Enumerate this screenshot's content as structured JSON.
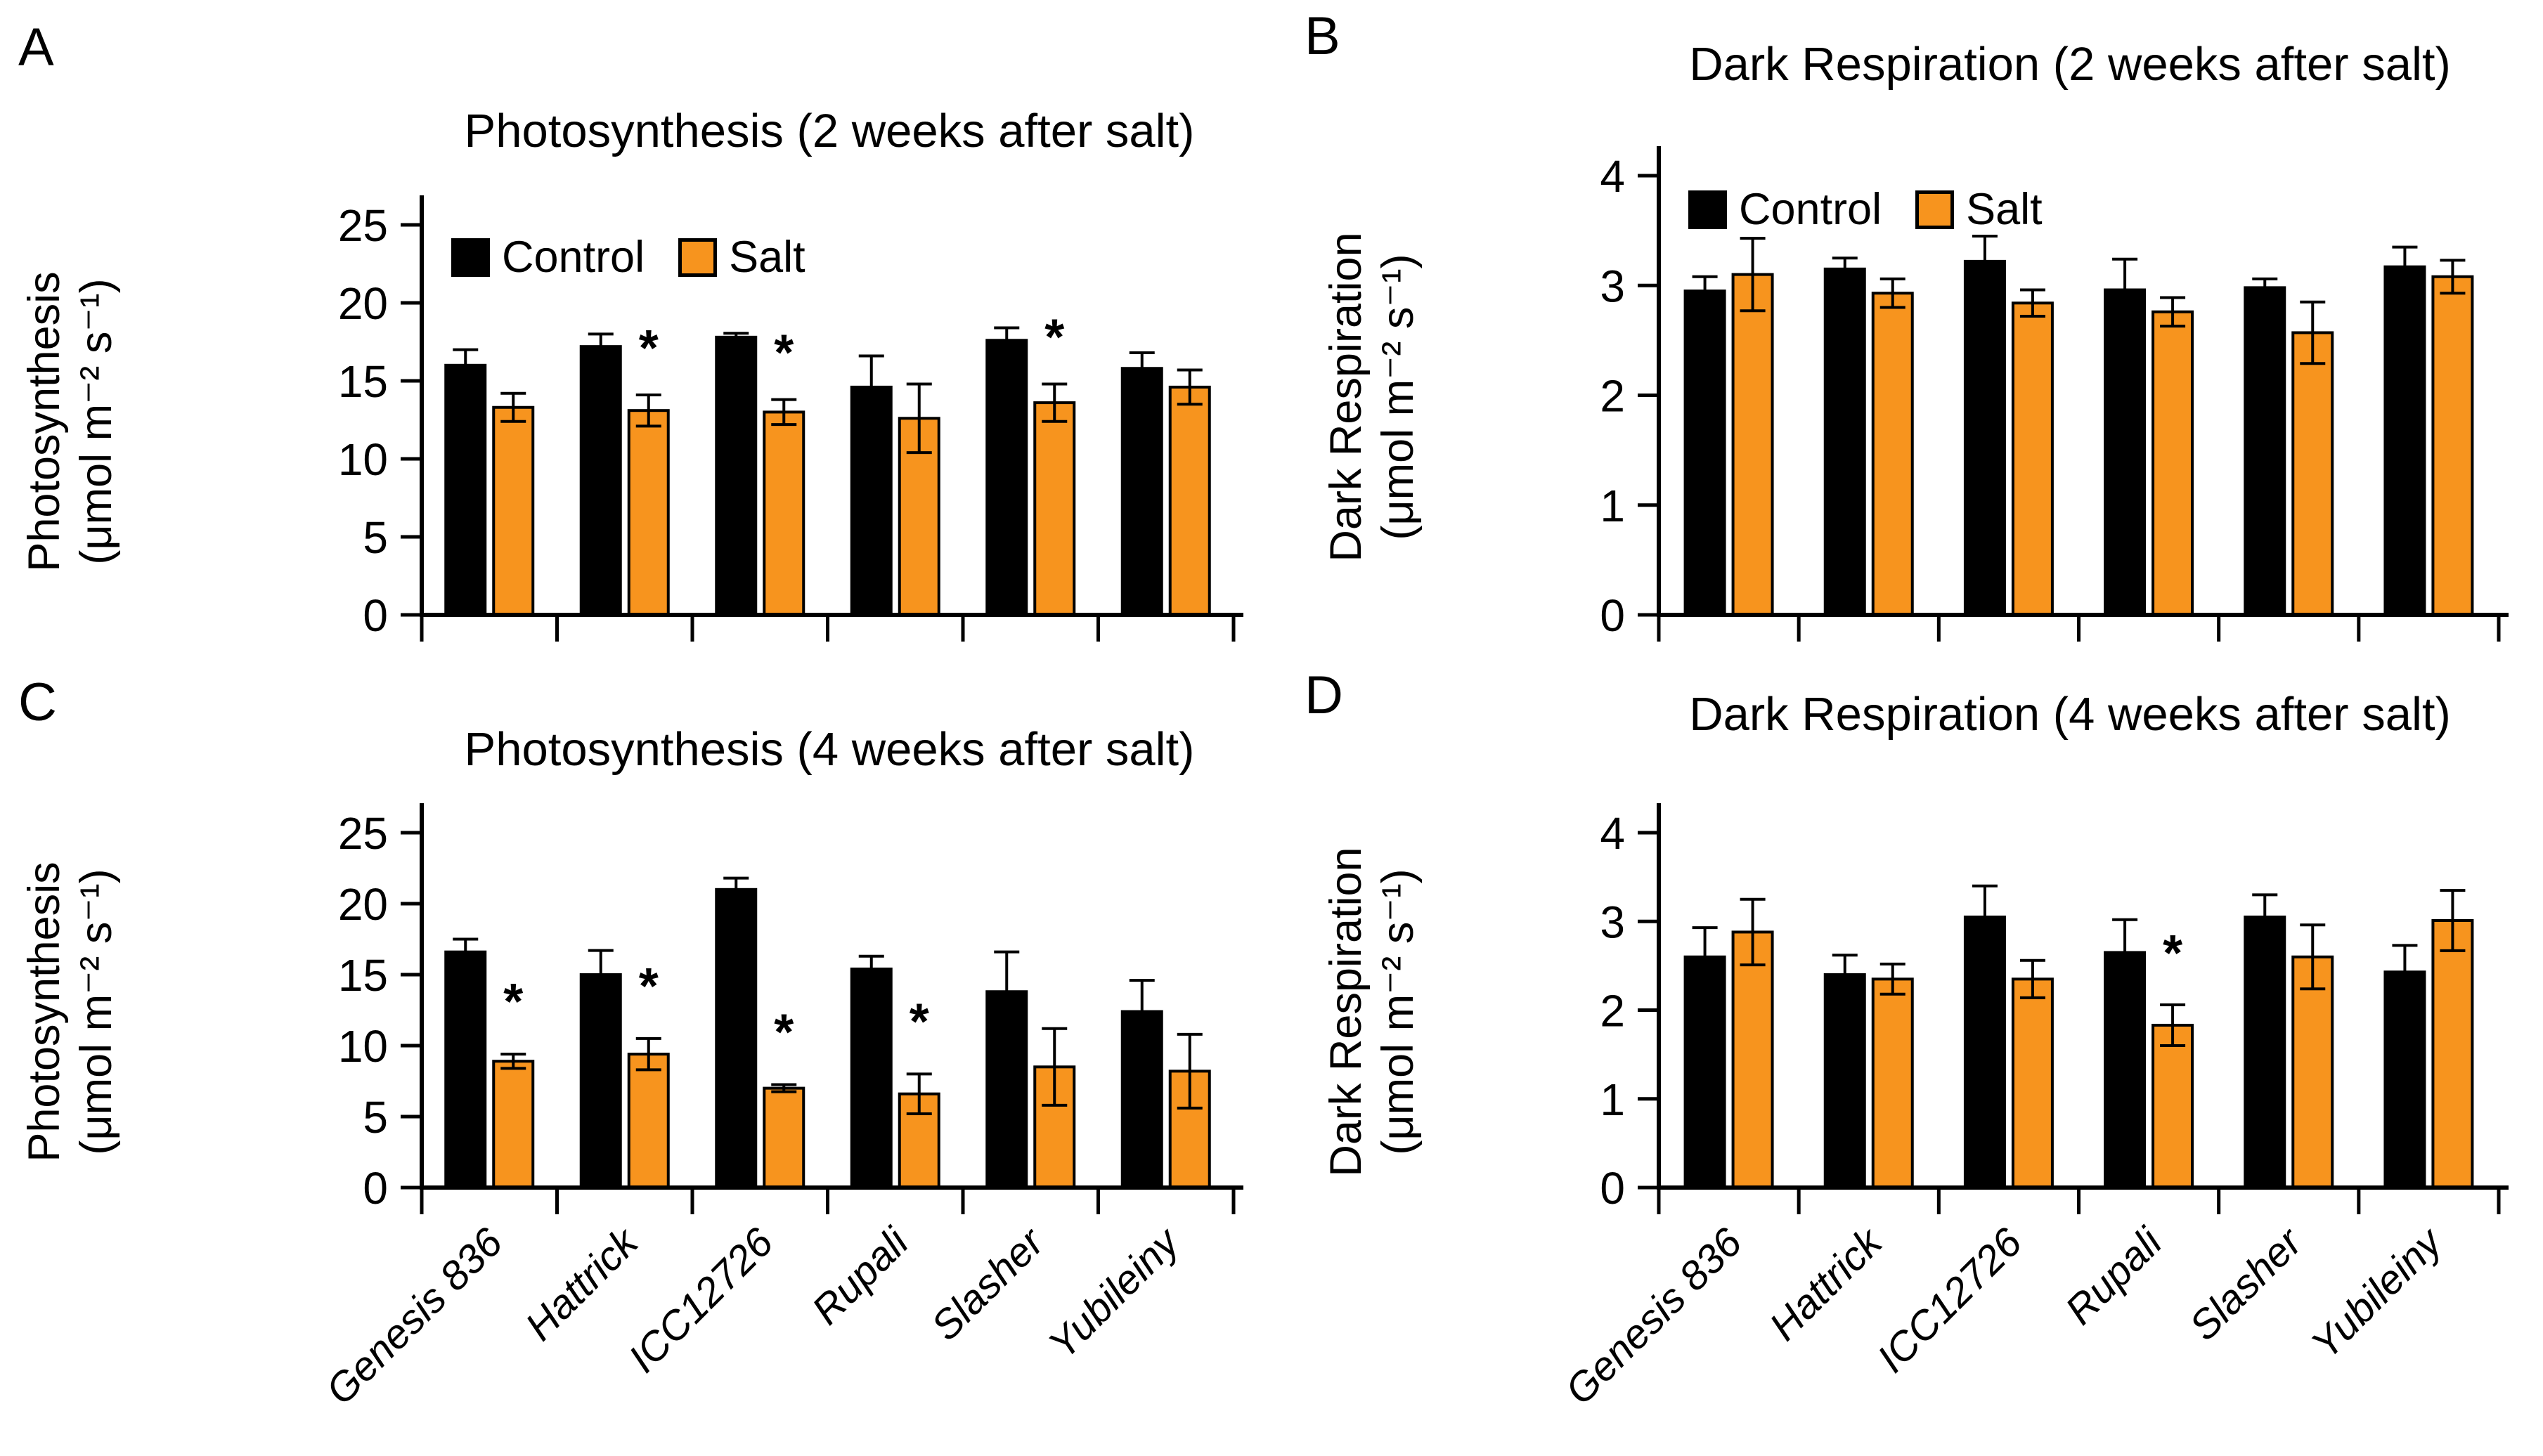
{
  "legend": {
    "control": "Control",
    "salt": "Salt"
  },
  "colors": {
    "control": "#000000",
    "salt": "#F7941E",
    "axis": "#000000"
  },
  "significance_marker": "*",
  "categories": [
    "Genesis 836",
    "Hattrick",
    "ICC12726",
    "Rupali",
    "Slasher",
    "Yubileiny"
  ],
  "chart_data": [
    {
      "type": "bar",
      "panel_letter": "A",
      "title": "Photosynthesis (2 weeks after salt)",
      "ylabel_line1": "Photosynthesis",
      "ylabel_line2": "(μmol m⁻² s⁻¹)",
      "ylim": [
        0,
        25
      ],
      "yticks": [
        0,
        5,
        10,
        15,
        20,
        25
      ],
      "grid": false,
      "legend_position": "top-left-inside",
      "categories": [
        "Genesis 836",
        "Hattrick",
        "ICC12726",
        "Rupali",
        "Slasher",
        "Yubileiny"
      ],
      "series": [
        {
          "name": "Control",
          "values": [
            16.0,
            17.2,
            17.8,
            14.6,
            17.6,
            15.8
          ],
          "errors": [
            1.0,
            0.8,
            0.25,
            2.0,
            0.8,
            1.0
          ],
          "significant": [
            false,
            false,
            false,
            false,
            false,
            false
          ]
        },
        {
          "name": "Salt",
          "values": [
            13.3,
            13.1,
            13.0,
            12.6,
            13.6,
            14.6
          ],
          "errors": [
            0.9,
            1.0,
            0.8,
            2.2,
            1.2,
            1.1
          ],
          "significant": [
            false,
            true,
            true,
            false,
            true,
            false
          ]
        }
      ]
    },
    {
      "type": "bar",
      "panel_letter": "B",
      "title": "Dark Respiration (2 weeks after salt)",
      "ylabel_line1": "Dark Respiration",
      "ylabel_line2": "(μmol m⁻² s⁻¹)",
      "ylim": [
        0,
        4
      ],
      "yticks": [
        0,
        1,
        2,
        3,
        4
      ],
      "grid": false,
      "legend_position": "top-left-inside",
      "categories": [
        "Genesis 836",
        "Hattrick",
        "ICC12726",
        "Rupali",
        "Slasher",
        "Yubileiny"
      ],
      "series": [
        {
          "name": "Control",
          "values": [
            2.95,
            3.15,
            3.22,
            2.96,
            2.98,
            3.17
          ],
          "errors": [
            0.13,
            0.1,
            0.23,
            0.28,
            0.08,
            0.18
          ],
          "significant": [
            false,
            false,
            false,
            false,
            false,
            false
          ]
        },
        {
          "name": "Salt",
          "values": [
            3.1,
            2.93,
            2.84,
            2.76,
            2.57,
            3.08
          ],
          "errors": [
            0.33,
            0.13,
            0.12,
            0.13,
            0.28,
            0.15
          ],
          "significant": [
            false,
            false,
            false,
            false,
            false,
            false
          ]
        }
      ]
    },
    {
      "type": "bar",
      "panel_letter": "C",
      "title": "Photosynthesis (4 weeks after salt)",
      "ylabel_line1": "Photosynthesis",
      "ylabel_line2": "(μmol m⁻² s⁻¹)",
      "ylim": [
        0,
        25
      ],
      "yticks": [
        0,
        5,
        10,
        15,
        20,
        25
      ],
      "grid": false,
      "legend_position": "none",
      "categories": [
        "Genesis 836",
        "Hattrick",
        "ICC12726",
        "Rupali",
        "Slasher",
        "Yubileiny"
      ],
      "series": [
        {
          "name": "Control",
          "values": [
            16.6,
            15.0,
            21.0,
            15.4,
            13.8,
            12.4
          ],
          "errors": [
            0.9,
            1.7,
            0.8,
            0.9,
            2.8,
            2.2
          ],
          "significant": [
            false,
            false,
            false,
            false,
            false,
            false
          ]
        },
        {
          "name": "Salt",
          "values": [
            8.9,
            9.4,
            7.0,
            6.6,
            8.5,
            8.2
          ],
          "errors": [
            0.5,
            1.1,
            0.25,
            1.4,
            2.7,
            2.6
          ],
          "significant": [
            true,
            true,
            true,
            true,
            false,
            false
          ]
        }
      ]
    },
    {
      "type": "bar",
      "panel_letter": "D",
      "title": "Dark Respiration (4 weeks after salt)",
      "ylabel_line1": "Dark Respiration",
      "ylabel_line2": "(μmol m⁻² s⁻¹)",
      "ylim": [
        0,
        4
      ],
      "yticks": [
        0,
        1,
        2,
        3,
        4
      ],
      "grid": false,
      "legend_position": "none",
      "categories": [
        "Genesis 836",
        "Hattrick",
        "ICC12726",
        "Rupali",
        "Slasher",
        "Yubileiny"
      ],
      "series": [
        {
          "name": "Control",
          "values": [
            2.6,
            2.4,
            3.05,
            2.65,
            3.05,
            2.43
          ],
          "errors": [
            0.33,
            0.22,
            0.35,
            0.37,
            0.25,
            0.3
          ],
          "significant": [
            false,
            false,
            false,
            false,
            false,
            false
          ]
        },
        {
          "name": "Salt",
          "values": [
            2.88,
            2.35,
            2.35,
            1.83,
            2.6,
            3.01
          ],
          "errors": [
            0.37,
            0.17,
            0.21,
            0.23,
            0.36,
            0.34
          ],
          "significant": [
            false,
            false,
            false,
            true,
            false,
            false
          ]
        }
      ]
    }
  ]
}
